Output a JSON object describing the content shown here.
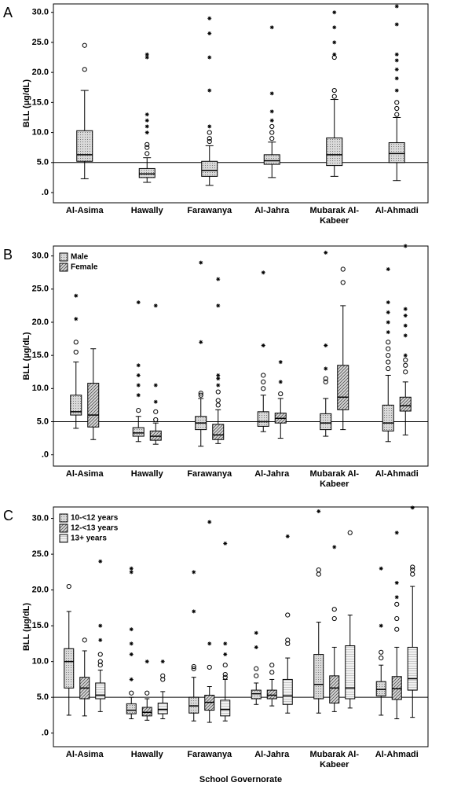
{
  "chart_data": [
    {
      "type": "box",
      "label": "A",
      "y_label": "BLL (µg/dL)",
      "ylim": [
        -1.7,
        31.4
      ],
      "yticks": [
        {
          "value": 0,
          "label": ".0"
        },
        {
          "value": 5,
          "label": "5.0"
        },
        {
          "value": 10,
          "label": "10.0"
        },
        {
          "value": 15,
          "label": "15.0"
        },
        {
          "value": 20,
          "label": "20.0"
        },
        {
          "value": 25,
          "label": "25.0"
        },
        {
          "value": 30,
          "label": "30.0"
        }
      ],
      "reference_line": 5,
      "legend": false,
      "categories": [
        "Al-Asima",
        "Hawally",
        "Farawanya",
        "Al-Jahra",
        "Mubarak Al-Kabeer",
        "Al-Ahmadi"
      ],
      "series": [
        {
          "pattern": "dots",
          "color": "#d9d9d9",
          "boxes": [
            {
              "low": 2.3,
              "q1": 5.2,
              "median": 6.3,
              "q3": 10.3,
              "high": 17,
              "outliers": [
                20.5,
                24.5
              ],
              "extremes": []
            },
            {
              "low": 1.7,
              "q1": 2.5,
              "median": 3.1,
              "q3": 4.0,
              "high": 5.8,
              "outliers": [
                6.5,
                7.5,
                8
              ],
              "extremes": [
                10,
                11,
                12,
                13,
                22.5,
                23
              ]
            },
            {
              "low": 1.2,
              "q1": 2.7,
              "median": 3.7,
              "q3": 5.2,
              "high": 7.8,
              "outliers": [
                8.5,
                9,
                10
              ],
              "extremes": [
                11,
                17,
                22.5,
                26.5,
                29
              ]
            },
            {
              "low": 2.5,
              "q1": 4.7,
              "median": 5.3,
              "q3": 6.3,
              "high": 8.4,
              "outliers": [
                9,
                10,
                11
              ],
              "extremes": [
                12,
                13.5,
                16.5,
                27.5
              ]
            },
            {
              "low": 2.7,
              "q1": 4.5,
              "median": 6.3,
              "q3": 9.1,
              "high": 15.5,
              "outliers": [
                16,
                17,
                22.5
              ],
              "extremes": [
                23,
                25,
                27.5,
                30
              ]
            },
            {
              "low": 2.0,
              "q1": 5.0,
              "median": 6.5,
              "q3": 8.3,
              "high": 12.5,
              "outliers": [
                13,
                14,
                15
              ],
              "extremes": [
                17,
                19,
                20.5,
                22,
                23,
                28,
                31
              ]
            }
          ]
        }
      ]
    },
    {
      "type": "box",
      "label": "B",
      "y_label": "BLL (µg/dL)",
      "ylim": [
        -1.7,
        31.5
      ],
      "yticks": [
        {
          "value": 0,
          "label": ".0"
        },
        {
          "value": 5,
          "label": "5.0"
        },
        {
          "value": 10,
          "label": "10.0"
        },
        {
          "value": 15,
          "label": "15.0"
        },
        {
          "value": 20,
          "label": "20.0"
        },
        {
          "value": 25,
          "label": "25.0"
        },
        {
          "value": 30,
          "label": "30.0"
        }
      ],
      "reference_line": 5,
      "legend": "upper left",
      "categories": [
        "Al-Asima",
        "Hawally",
        "Farawanya",
        "Al-Jahra",
        "Mubarak Al-Kabeer",
        "Al-Ahmadi"
      ],
      "series": [
        {
          "name": "Male",
          "pattern": "dots",
          "color": "#d9d9d9",
          "boxes": [
            {
              "low": 4,
              "q1": 6,
              "median": 6.5,
              "q3": 9,
              "high": 14,
              "outliers": [
                15.5,
                17
              ],
              "extremes": [
                20.5,
                24
              ]
            },
            {
              "low": 2,
              "q1": 2.8,
              "median": 3.3,
              "q3": 4.1,
              "high": 5.8,
              "outliers": [
                6.7
              ],
              "extremes": [
                9,
                10.5,
                12,
                13.5,
                23
              ]
            },
            {
              "low": 1.3,
              "q1": 3.8,
              "median": 4.8,
              "q3": 5.8,
              "high": 8.5,
              "outliers": [
                9,
                9.3
              ],
              "extremes": [
                17,
                29
              ]
            },
            {
              "low": 3.5,
              "q1": 4.3,
              "median": 5,
              "q3": 6.5,
              "high": 9,
              "outliers": [
                10,
                11,
                12
              ],
              "extremes": [
                16.5,
                27.5
              ]
            },
            {
              "low": 2.8,
              "q1": 3.8,
              "median": 4.8,
              "q3": 6.2,
              "high": 8.5,
              "outliers": [
                11,
                11.5
              ],
              "extremes": [
                13,
                16.5,
                30.5
              ]
            },
            {
              "low": 2,
              "q1": 3.6,
              "median": 4.8,
              "q3": 7.5,
              "high": 12,
              "outliers": [
                13,
                14,
                15,
                16,
                17
              ],
              "extremes": [
                18.5,
                20,
                21.5,
                23,
                28
              ]
            }
          ]
        },
        {
          "name": "Female",
          "pattern": "hatch",
          "color": "#d9d9d9",
          "boxes": [
            {
              "low": 2.3,
              "q1": 4.2,
              "median": 6,
              "q3": 10.8,
              "high": 16,
              "outliers": [],
              "extremes": []
            },
            {
              "low": 1.6,
              "q1": 2.2,
              "median": 2.8,
              "q3": 3.6,
              "high": 4.8,
              "outliers": [
                5.3,
                6.5
              ],
              "extremes": [
                8,
                10.5,
                22.5
              ]
            },
            {
              "low": 1.7,
              "q1": 2.3,
              "median": 3,
              "q3": 4.6,
              "high": 6.8,
              "outliers": [
                7.5,
                8.2,
                9.5
              ],
              "extremes": [
                10.5,
                11.5,
                12,
                22.5,
                26.5
              ]
            },
            {
              "low": 2.5,
              "q1": 4.8,
              "median": 5.5,
              "q3": 6.3,
              "high": 8.5,
              "outliers": [
                9.2
              ],
              "extremes": [
                11,
                14
              ]
            },
            {
              "low": 3.8,
              "q1": 6.8,
              "median": 8.7,
              "q3": 13.5,
              "high": 22.5,
              "outliers": [
                26,
                28
              ],
              "extremes": []
            },
            {
              "low": 3,
              "q1": 6.6,
              "median": 7.4,
              "q3": 8.7,
              "high": 11,
              "outliers": [
                12.5,
                13.5,
                14.3
              ],
              "extremes": [
                15,
                18,
                19.5,
                21,
                22,
                31.5
              ]
            }
          ]
        }
      ]
    },
    {
      "type": "box",
      "label": "C",
      "y_label": "BLL (µg/dL)",
      "x_label": "School Governorate",
      "ylim": [
        -1.9,
        31.6
      ],
      "yticks": [
        {
          "value": 0,
          "label": ".0"
        },
        {
          "value": 5,
          "label": "5.0"
        },
        {
          "value": 10,
          "label": "10.0"
        },
        {
          "value": 15,
          "label": "15.0"
        },
        {
          "value": 20,
          "label": "20.0"
        },
        {
          "value": 25,
          "label": "25.0"
        },
        {
          "value": 30,
          "label": "30.0"
        }
      ],
      "reference_line": 5,
      "legend": "upper left",
      "categories": [
        "Al-Asima",
        "Hawally",
        "Farawanya",
        "Al-Jahra",
        "Mubarak Al-Kabeer",
        "Al-Ahmadi"
      ],
      "series": [
        {
          "name": "10-<12 years",
          "pattern": "dots",
          "color": "#d9d9d9",
          "boxes": [
            {
              "low": 2.5,
              "q1": 6.3,
              "median": 10,
              "q3": 11.8,
              "high": 17,
              "outliers": [
                20.5
              ],
              "extremes": []
            },
            {
              "low": 2,
              "q1": 2.7,
              "median": 3.2,
              "q3": 4.1,
              "high": 5,
              "outliers": [
                5.6
              ],
              "extremes": [
                7.5,
                11,
                12.5,
                14.5,
                22.5,
                23
              ]
            },
            {
              "low": 1.7,
              "q1": 2.8,
              "median": 3.8,
              "q3": 5,
              "high": 7.8,
              "outliers": [
                9,
                9.3
              ],
              "extremes": [
                17,
                22.5
              ]
            },
            {
              "low": 4,
              "q1": 4.8,
              "median": 5.5,
              "q3": 6,
              "high": 7,
              "outliers": [
                8,
                9
              ],
              "extremes": [
                12,
                14
              ]
            },
            {
              "low": 2.8,
              "q1": 4.8,
              "median": 6.8,
              "q3": 11,
              "high": 15.5,
              "outliers": [
                22.2,
                22.8
              ],
              "extremes": [
                31
              ]
            },
            {
              "low": 2.5,
              "q1": 5.2,
              "median": 6.1,
              "q3": 7.2,
              "high": 9.5,
              "outliers": [
                10.5,
                11.3
              ],
              "extremes": [
                15,
                23
              ]
            }
          ]
        },
        {
          "name": "12-<13 years",
          "pattern": "hatch",
          "color": "#d9d9d9",
          "boxes": [
            {
              "low": 2.4,
              "q1": 4.8,
              "median": 6.3,
              "q3": 7.8,
              "high": 11.5,
              "outliers": [
                13
              ],
              "extremes": []
            },
            {
              "low": 1.8,
              "q1": 2.4,
              "median": 2.9,
              "q3": 3.6,
              "high": 4.8,
              "outliers": [
                5.6
              ],
              "extremes": [
                10
              ]
            },
            {
              "low": 1.5,
              "q1": 3.2,
              "median": 4.3,
              "q3": 5.3,
              "high": 6.5,
              "outliers": [
                9.2
              ],
              "extremes": [
                12.5,
                29.5
              ]
            },
            {
              "low": 3.8,
              "q1": 4.8,
              "median": 5.3,
              "q3": 6,
              "high": 7.5,
              "outliers": [
                8.5,
                9.5
              ],
              "extremes": []
            },
            {
              "low": 3,
              "q1": 4.2,
              "median": 6.3,
              "q3": 8,
              "high": 12,
              "outliers": [
                16,
                17.3
              ],
              "extremes": [
                26
              ]
            },
            {
              "low": 2,
              "q1": 4.7,
              "median": 6.2,
              "q3": 7.9,
              "high": 12,
              "outliers": [
                14.5,
                16,
                18
              ],
              "extremes": [
                19,
                21,
                28
              ]
            }
          ]
        },
        {
          "name": "13+ years",
          "pattern": "lines",
          "color": "#f2f2f2",
          "boxes": [
            {
              "low": 3,
              "q1": 4.8,
              "median": 5.3,
              "q3": 7,
              "high": 8.8,
              "outliers": [
                9.5,
                10,
                11
              ],
              "extremes": [
                13,
                15,
                24
              ]
            },
            {
              "low": 2,
              "q1": 2.7,
              "median": 3.3,
              "q3": 4.2,
              "high": 5.8,
              "outliers": [
                7.5,
                8
              ],
              "extremes": [
                10
              ]
            },
            {
              "low": 1.7,
              "q1": 2.4,
              "median": 3.3,
              "q3": 4.6,
              "high": 7.5,
              "outliers": [
                7.8,
                8.2,
                9.5
              ],
              "extremes": [
                11,
                12.5,
                26.5
              ]
            },
            {
              "low": 2.8,
              "q1": 4,
              "median": 5.2,
              "q3": 7.5,
              "high": 10.5,
              "outliers": [
                12.5,
                13,
                16.5
              ],
              "extremes": [
                27.5
              ]
            },
            {
              "low": 3.5,
              "q1": 4.8,
              "median": 6.3,
              "q3": 12.2,
              "high": 16.5,
              "outliers": [
                28
              ],
              "extremes": []
            },
            {
              "low": 2.2,
              "q1": 6,
              "median": 7.6,
              "q3": 12,
              "high": 20.5,
              "outliers": [
                22.2,
                22.8,
                23.2
              ],
              "extremes": [
                31.5
              ]
            }
          ]
        }
      ]
    }
  ]
}
